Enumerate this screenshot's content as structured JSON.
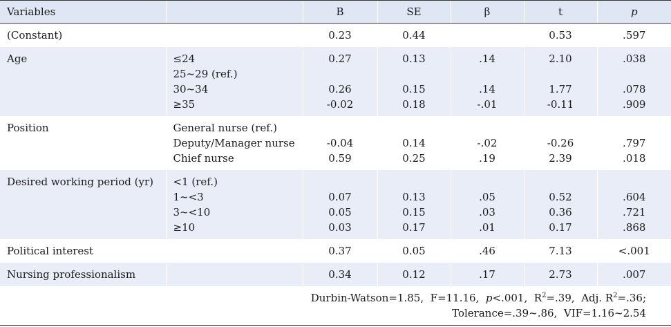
{
  "headers": [
    "Variables",
    "",
    "B",
    "SE",
    "β",
    "t",
    "p"
  ],
  "rows": {
    "constant": {
      "label": "(Constant)",
      "B": "0.23",
      "SE": "0.44",
      "beta": "",
      "t": "0.53",
      "p": ".597"
    },
    "age": {
      "label": "Age",
      "sub": [
        "≤24",
        "25~29 (ref.)",
        "30~34",
        "≥35"
      ],
      "B": [
        "0.27",
        "",
        "0.26",
        "-0.02"
      ],
      "SE": [
        "0.13",
        "",
        "0.15",
        "0.18"
      ],
      "beta": [
        ".14",
        "",
        ".14",
        "-.01"
      ],
      "t": [
        "2.10",
        "",
        "1.77",
        "-0.11"
      ],
      "p": [
        ".038",
        "",
        ".078",
        ".909"
      ]
    },
    "position": {
      "label": "Position",
      "sub": [
        "General nurse (ref.)",
        "Deputy/Manager nurse",
        "Chief nurse"
      ],
      "B": [
        "",
        "-0.04",
        "0.59"
      ],
      "SE": [
        "",
        "0.14",
        "0.25"
      ],
      "beta": [
        "",
        "-.02",
        ".19"
      ],
      "t": [
        "",
        "-0.26",
        "2.39"
      ],
      "p": [
        "",
        ".797",
        ".018"
      ]
    },
    "period": {
      "label": "Desired working period (yr)",
      "sub": [
        "<1 (ref.)",
        "1~<3",
        "3~<10",
        "≥10"
      ],
      "B": [
        "",
        "0.07",
        "0.05",
        "0.03"
      ],
      "SE": [
        "",
        "0.13",
        "0.15",
        "0.17"
      ],
      "beta": [
        "",
        ".05",
        ".03",
        ".01"
      ],
      "t": [
        "",
        "0.52",
        "0.36",
        "0.17"
      ],
      "p": [
        "",
        ".604",
        ".721",
        ".868"
      ]
    },
    "political": {
      "label": "Political interest",
      "B": "0.37",
      "SE": "0.05",
      "beta": ".46",
      "t": "7.13",
      "p": "<.001"
    },
    "professionalism": {
      "label": "Nursing professionalism",
      "B": "0.34",
      "SE": "0.12",
      "beta": ".17",
      "t": "2.73",
      "p": ".007"
    }
  },
  "footer": {
    "dw": "Durbin-Watson=1.85,",
    "f": "F=11.16,",
    "p_label": "p",
    "p_val": "<.001,",
    "r2_label": "R",
    "r2_sup": "2",
    "r2_val": "=.39,",
    "adj_label": "Adj. R",
    "adj_sup": "2",
    "adj_val": "=.36;",
    "tolerance": "Tolerance=.39~.86,",
    "vif": "VIF=1.16~2.54"
  }
}
